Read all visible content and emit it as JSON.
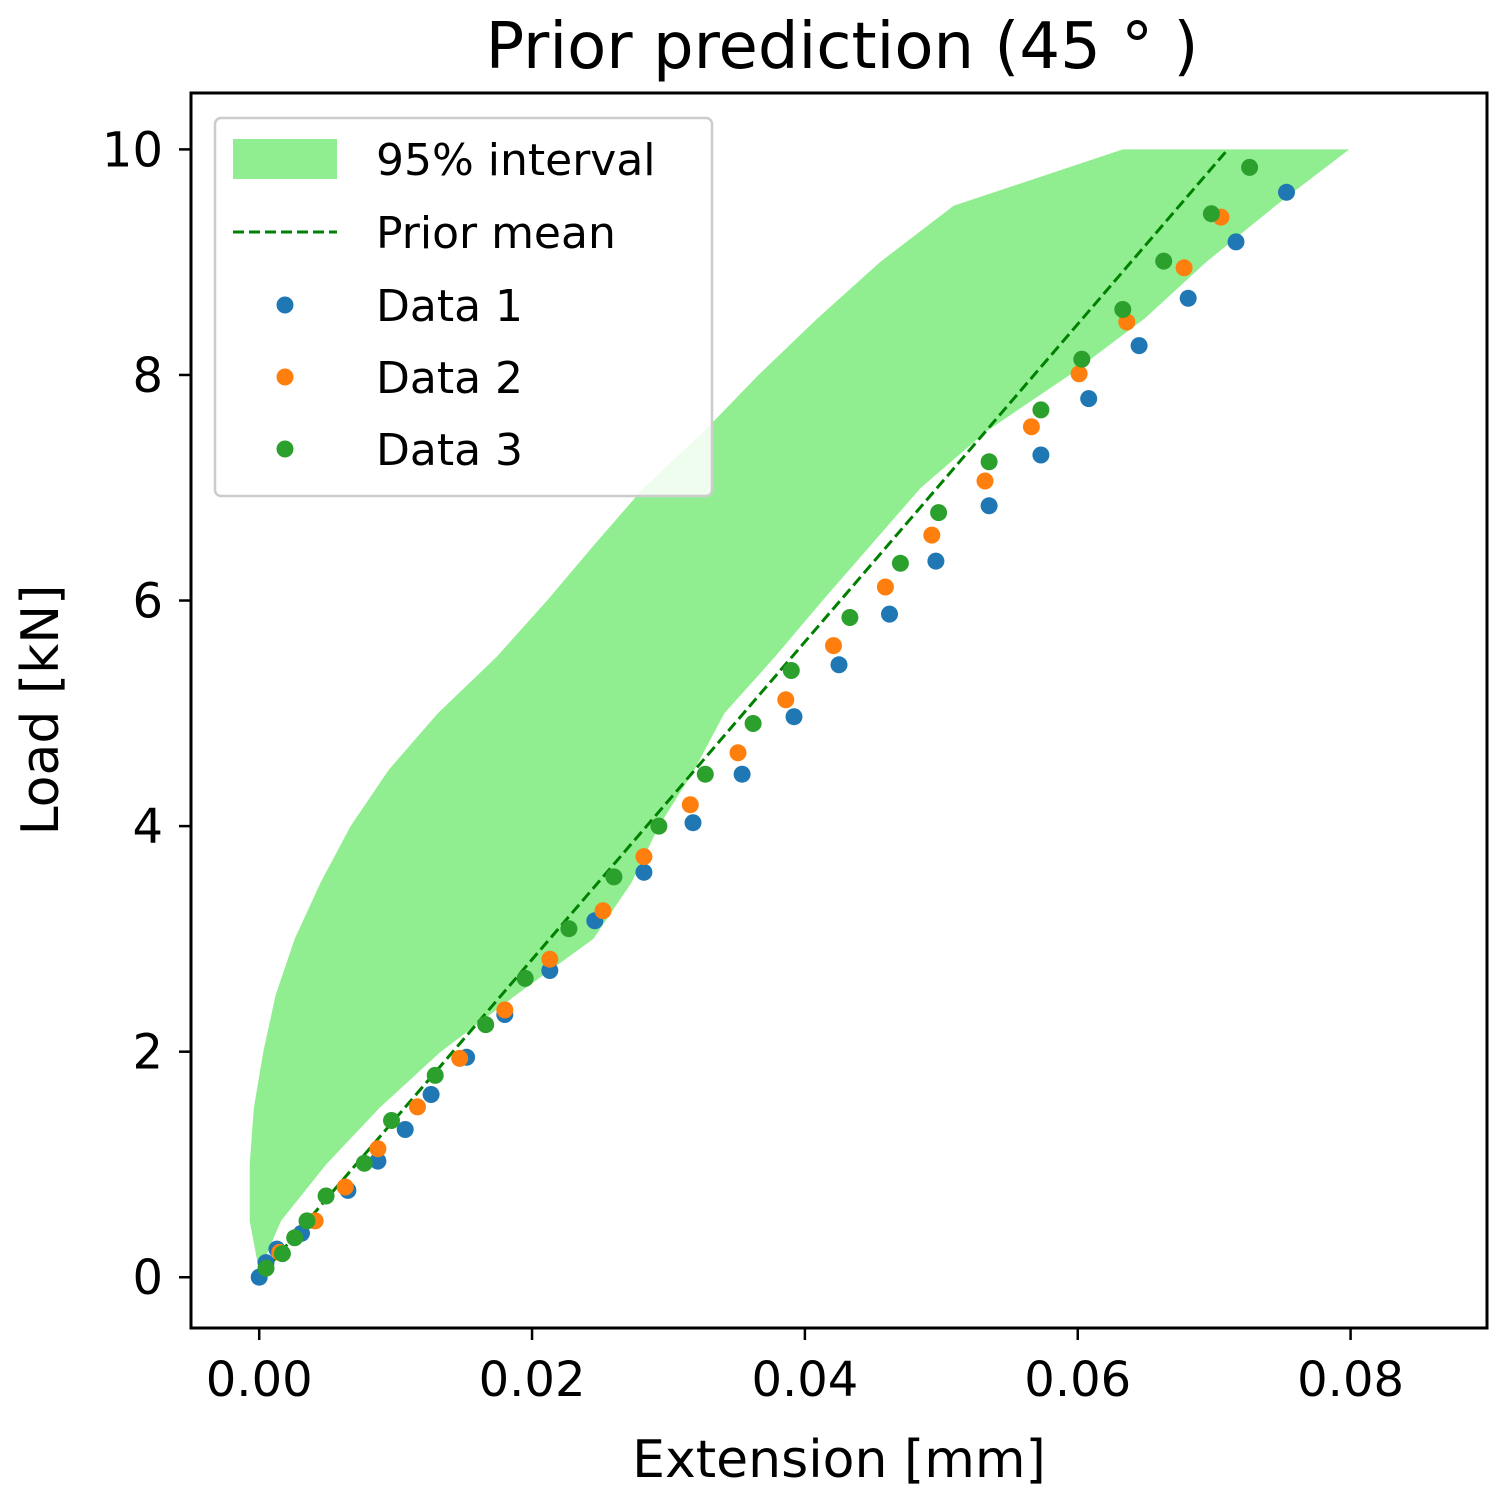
{
  "chart_data": {
    "type": "scatter",
    "title": "Prior prediction (45$^\\circ$)",
    "title_display": "Prior prediction (45 ° )",
    "xlabel": "Extension [mm]",
    "ylabel": "Load [kN]",
    "xlim": [
      -0.005,
      0.09
    ],
    "ylim": [
      -0.45,
      10.5
    ],
    "x_ticks": [
      0.0,
      0.02,
      0.04,
      0.06,
      0.08
    ],
    "x_tick_labels": [
      "0.00",
      "0.02",
      "0.04",
      "0.06",
      "0.08"
    ],
    "y_ticks": [
      0,
      2,
      4,
      6,
      8,
      10
    ],
    "y_tick_labels": [
      "0",
      "2",
      "4",
      "6",
      "8",
      "10"
    ],
    "grid": false,
    "legend_placement": "top-left",
    "legend": [
      {
        "label": "95% interval",
        "kind": "patch",
        "color": "#90ee90"
      },
      {
        "label": "Prior mean",
        "kind": "dashed-line",
        "color": "#008000"
      },
      {
        "label": "Data 1",
        "kind": "marker",
        "color": "#1f77b4"
      },
      {
        "label": "Data 2",
        "kind": "marker",
        "color": "#ff7f0e"
      },
      {
        "label": "Data 3",
        "kind": "marker",
        "color": "#2ca02c"
      }
    ],
    "interval": {
      "name": "95% interval",
      "color": "#90ee90",
      "y": [
        0.05,
        0.5,
        1.0,
        1.5,
        2.0,
        2.5,
        3.0,
        3.5,
        4.0,
        4.5,
        5.0,
        5.5,
        6.0,
        6.5,
        7.0,
        7.5,
        8.0,
        8.5,
        9.0,
        9.5,
        10.0
      ],
      "upper_x": [
        0.0,
        0.0016,
        0.0049,
        0.0088,
        0.0133,
        0.0188,
        0.0245,
        0.0273,
        0.0293,
        0.0319,
        0.0341,
        0.0378,
        0.0413,
        0.0449,
        0.0485,
        0.0533,
        0.0594,
        0.0649,
        0.0694,
        0.0745,
        0.0799
      ],
      "lower_x": [
        0.0,
        -0.0007,
        -0.0007,
        -0.0004,
        0.0003,
        0.0012,
        0.0026,
        0.0045,
        0.0067,
        0.0095,
        0.0131,
        0.0174,
        0.0211,
        0.0246,
        0.0282,
        0.0326,
        0.0366,
        0.0409,
        0.0455,
        0.0509,
        0.0633
      ]
    },
    "series": [
      {
        "name": "Prior mean",
        "style": "dashed-line",
        "color": "#008000",
        "x": [
          0.0,
          0.071
        ],
        "y": [
          0.0,
          10.0
        ]
      },
      {
        "name": "Data 1",
        "style": "marker",
        "color": "#1f77b4",
        "x": [
          0.0,
          0.0005,
          0.0013,
          0.0031,
          0.0065,
          0.0087,
          0.0107,
          0.0126,
          0.0152,
          0.018,
          0.0213,
          0.0246,
          0.0282,
          0.0318,
          0.0354,
          0.0392,
          0.0425,
          0.0462,
          0.0496,
          0.0535,
          0.0573,
          0.0608,
          0.0645,
          0.0681,
          0.0716,
          0.0753
        ],
        "y": [
          0.0,
          0.13,
          0.25,
          0.39,
          0.77,
          1.03,
          1.31,
          1.62,
          1.95,
          2.33,
          2.72,
          3.16,
          3.59,
          4.03,
          4.46,
          4.97,
          5.43,
          5.88,
          6.35,
          6.84,
          7.29,
          7.79,
          8.26,
          8.68,
          9.18,
          9.62
        ]
      },
      {
        "name": "Data 2",
        "style": "marker",
        "color": "#ff7f0e",
        "x": [
          0.0015,
          0.0041,
          0.0063,
          0.0087,
          0.0116,
          0.0147,
          0.018,
          0.0213,
          0.0252,
          0.0282,
          0.0316,
          0.0351,
          0.0386,
          0.0421,
          0.0459,
          0.0493,
          0.0532,
          0.0566,
          0.0601,
          0.0636,
          0.0678,
          0.0705
        ],
        "y": [
          0.22,
          0.5,
          0.8,
          1.14,
          1.51,
          1.94,
          2.37,
          2.82,
          3.25,
          3.73,
          4.19,
          4.65,
          5.12,
          5.6,
          6.12,
          6.58,
          7.06,
          7.54,
          8.01,
          8.47,
          8.95,
          9.4
        ]
      },
      {
        "name": "Data 3",
        "style": "marker",
        "color": "#2ca02c",
        "x": [
          0.0005,
          0.0017,
          0.0026,
          0.0035,
          0.0049,
          0.0077,
          0.0097,
          0.0129,
          0.0166,
          0.0195,
          0.0227,
          0.026,
          0.0293,
          0.0327,
          0.0362,
          0.039,
          0.0433,
          0.047,
          0.0498,
          0.0535,
          0.0573,
          0.0603,
          0.0633,
          0.0663,
          0.0698,
          0.0726
        ],
        "y": [
          0.08,
          0.21,
          0.35,
          0.5,
          0.72,
          1.01,
          1.39,
          1.79,
          2.24,
          2.65,
          3.09,
          3.55,
          4.0,
          4.46,
          4.91,
          5.38,
          5.85,
          6.33,
          6.78,
          7.23,
          7.69,
          8.14,
          8.58,
          9.01,
          9.43,
          9.84
        ]
      }
    ]
  }
}
